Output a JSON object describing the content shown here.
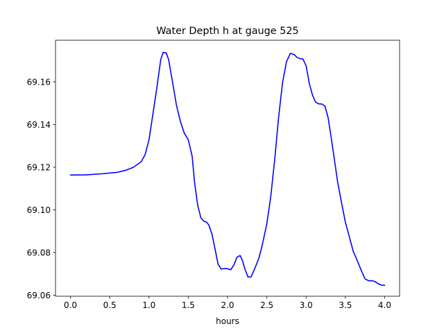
{
  "chart_data": {
    "type": "line",
    "title": "Water Depth h at gauge 525",
    "xlabel": "hours",
    "ylabel": "",
    "xlim": [
      -0.19,
      4.19
    ],
    "ylim": [
      69.0595,
      69.1795
    ],
    "xticks": [
      0.0,
      0.5,
      1.0,
      1.5,
      2.0,
      2.5,
      3.0,
      3.5,
      4.0
    ],
    "xtick_labels": [
      "0.0",
      "0.5",
      "1.0",
      "1.5",
      "2.0",
      "2.5",
      "3.0",
      "3.5",
      "4.0"
    ],
    "yticks": [
      69.06,
      69.08,
      69.1,
      69.12,
      69.14,
      69.16
    ],
    "ytick_labels": [
      "69.06",
      "69.08",
      "69.10",
      "69.12",
      "69.14",
      "69.16"
    ],
    "grid": false,
    "series": [
      {
        "color": "#0000ff",
        "x": [
          0.0,
          0.2,
          0.4,
          0.6,
          0.7,
          0.8,
          0.9,
          0.95,
          1.0,
          1.05,
          1.1,
          1.15,
          1.18,
          1.22,
          1.25,
          1.3,
          1.35,
          1.4,
          1.45,
          1.5,
          1.55,
          1.58,
          1.62,
          1.66,
          1.7,
          1.73,
          1.76,
          1.8,
          1.84,
          1.88,
          1.92,
          1.96,
          2.0,
          2.04,
          2.08,
          2.12,
          2.16,
          2.19,
          2.22,
          2.26,
          2.3,
          2.33,
          2.36,
          2.4,
          2.44,
          2.5,
          2.55,
          2.6,
          2.65,
          2.7,
          2.75,
          2.8,
          2.85,
          2.88,
          2.92,
          2.96,
          3.0,
          3.04,
          3.08,
          3.12,
          3.16,
          3.2,
          3.24,
          3.28,
          3.32,
          3.36,
          3.4,
          3.45,
          3.5,
          3.55,
          3.6,
          3.65,
          3.7,
          3.75,
          3.8,
          3.84,
          3.88,
          3.92,
          3.96,
          4.0
        ],
        "y": [
          69.1163,
          69.1164,
          69.1169,
          69.1176,
          69.1185,
          69.1199,
          69.1225,
          69.1258,
          69.1328,
          69.1449,
          69.1572,
          69.1705,
          69.1738,
          69.1735,
          69.1704,
          69.1598,
          69.149,
          69.1414,
          69.1359,
          69.1329,
          69.125,
          69.1129,
          69.1021,
          69.0963,
          69.0946,
          69.0943,
          69.093,
          69.0889,
          69.0818,
          69.0744,
          69.0722,
          69.0725,
          69.0724,
          69.0719,
          69.0741,
          69.0778,
          69.0786,
          69.0762,
          69.0723,
          69.0685,
          69.0686,
          69.0711,
          69.0737,
          69.0775,
          69.0832,
          69.0935,
          69.1062,
          69.1235,
          69.1434,
          69.1596,
          69.1694,
          69.1734,
          69.1727,
          69.1716,
          69.1709,
          69.1707,
          69.1675,
          69.1594,
          69.1539,
          69.1505,
          69.1497,
          69.1496,
          69.1486,
          69.1432,
          69.1337,
          69.1236,
          69.1133,
          69.1035,
          69.0942,
          69.0874,
          69.0805,
          69.0763,
          69.0718,
          69.0676,
          69.0667,
          69.0668,
          69.0663,
          69.0653,
          69.0647,
          69.0646
        ]
      }
    ]
  }
}
